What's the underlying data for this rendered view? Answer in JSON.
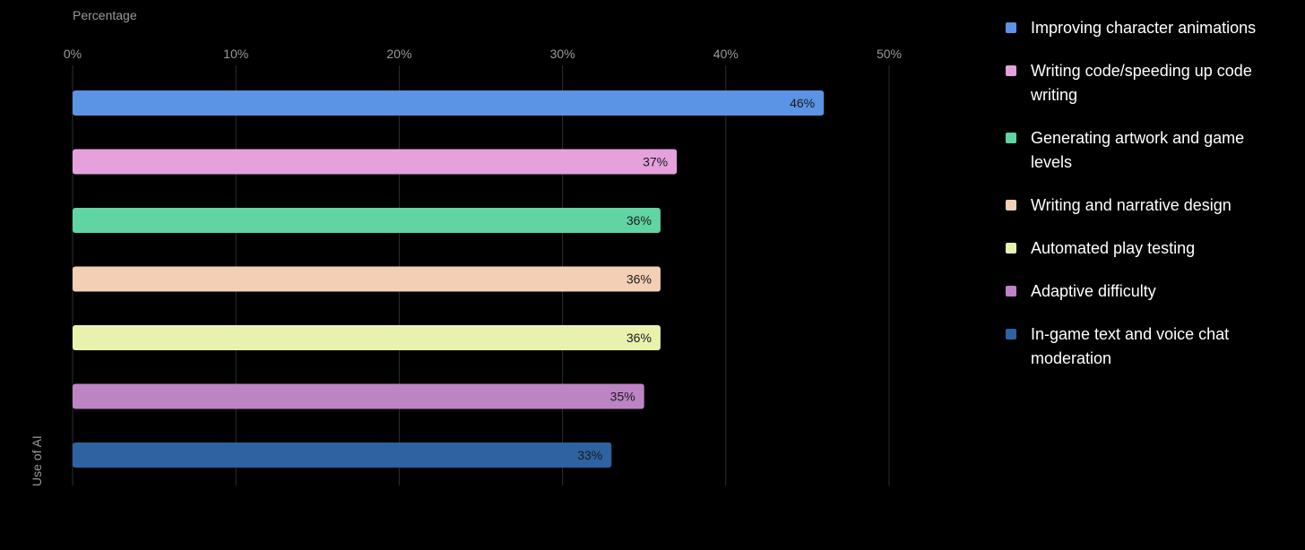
{
  "chart_data": {
    "type": "bar",
    "orientation": "horizontal",
    "xlabel": "Percentage",
    "ylabel": "Use of AI",
    "xlim": [
      0,
      50
    ],
    "x_ticks": [
      "0%",
      "10%",
      "20%",
      "30%",
      "40%",
      "50%"
    ],
    "grid": true,
    "legend_position": "right",
    "categories": [
      "Improving character animations",
      "Writing code/speeding up code writing",
      "Generating artwork and game levels",
      "Writing and narrative design",
      "Automated play testing",
      "Adaptive difficulty",
      "In-game text and voice chat moderation"
    ],
    "values": [
      46,
      37,
      36,
      36,
      36,
      35,
      33
    ],
    "value_labels": [
      "46%",
      "37%",
      "36%",
      "36%",
      "36%",
      "35%",
      "33%"
    ],
    "colors": [
      "#5b93e5",
      "#e4a1db",
      "#61d4a3",
      "#f3d0b5",
      "#e8f2ad",
      "#bd84c4",
      "#2e62a1"
    ]
  }
}
